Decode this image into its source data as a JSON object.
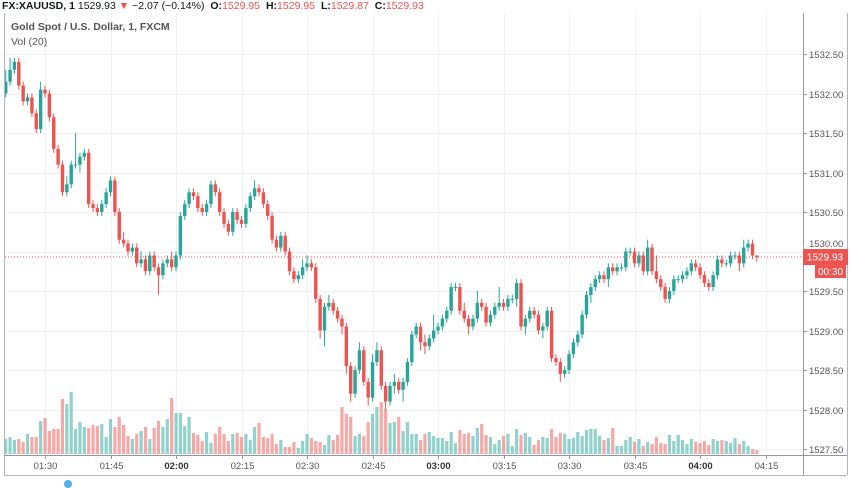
{
  "header": {
    "symbol": "FX:XAUUSD, 1",
    "last": "1529.93",
    "change_arrow": "▼",
    "change": "−2.07 (−0.14%)",
    "o_label": "O:",
    "o": "1529.95",
    "h_label": "H:",
    "h": "1529.95",
    "l_label": "L:",
    "l": "1529.87",
    "c_label": "C:",
    "c": "1529.93"
  },
  "legend": {
    "title": "Gold Spot / U.S. Dollar, 1, FXCM",
    "volume": "Vol (20)"
  },
  "price_label": {
    "value": "1529.93",
    "countdown": "00:30"
  },
  "colors": {
    "up": "#26a69a",
    "down": "#ef5350",
    "grid": "#eef2f6",
    "axis": "#787b86"
  },
  "chart_data": {
    "type": "candlestick",
    "interval_minutes": 1,
    "ylim": [
      1527.4,
      1532.9
    ],
    "grid": true,
    "y_ticks": [
      "1532.50",
      "1532.00",
      "1531.50",
      "1531.00",
      "1530.50",
      "1530.00",
      "1529.50",
      "1529.00",
      "1528.50",
      "1528.00",
      "1527.50"
    ],
    "x_ticks": [
      {
        "label": "01:30",
        "bold": false
      },
      {
        "label": "01:45",
        "bold": false
      },
      {
        "label": "02:00",
        "bold": true
      },
      {
        "label": "02:15",
        "bold": false
      },
      {
        "label": "02:30",
        "bold": false
      },
      {
        "label": "02:45",
        "bold": false
      },
      {
        "label": "03:00",
        "bold": true
      },
      {
        "label": "03:15",
        "bold": false
      },
      {
        "label": "03:30",
        "bold": false
      },
      {
        "label": "03:45",
        "bold": false
      },
      {
        "label": "04:00",
        "bold": true
      },
      {
        "label": "04:15",
        "bold": false
      }
    ],
    "last_price": 1529.93,
    "candles": [
      [
        1532.0,
        1532.3,
        1531.95,
        1532.15
      ],
      [
        1532.15,
        1532.45,
        1532.1,
        1532.3
      ],
      [
        1532.3,
        1532.45,
        1532.25,
        1532.4
      ],
      [
        1532.4,
        1532.45,
        1532.05,
        1532.1
      ],
      [
        1532.1,
        1532.15,
        1531.85,
        1531.9
      ],
      [
        1531.9,
        1532.0,
        1531.85,
        1531.95
      ],
      [
        1531.95,
        1532.0,
        1531.7,
        1531.75
      ],
      [
        1531.75,
        1531.8,
        1531.5,
        1531.55
      ],
      [
        1531.55,
        1532.15,
        1531.5,
        1532.05
      ],
      [
        1532.05,
        1532.1,
        1531.95,
        1532.0
      ],
      [
        1532.0,
        1532.05,
        1531.65,
        1531.7
      ],
      [
        1531.7,
        1531.75,
        1531.25,
        1531.3
      ],
      [
        1531.3,
        1531.35,
        1531.05,
        1531.1
      ],
      [
        1531.1,
        1531.15,
        1530.7,
        1530.75
      ],
      [
        1530.75,
        1530.95,
        1530.7,
        1530.85
      ],
      [
        1530.85,
        1531.15,
        1530.8,
        1531.1
      ],
      [
        1531.1,
        1531.5,
        1531.05,
        1531.1
      ],
      [
        1531.1,
        1531.25,
        1531.0,
        1531.2
      ],
      [
        1531.2,
        1531.3,
        1531.15,
        1531.25
      ],
      [
        1531.25,
        1531.3,
        1530.55,
        1530.6
      ],
      [
        1530.6,
        1530.65,
        1530.5,
        1530.55
      ],
      [
        1530.55,
        1530.6,
        1530.45,
        1530.5
      ],
      [
        1530.5,
        1530.65,
        1530.45,
        1530.6
      ],
      [
        1530.6,
        1530.8,
        1530.55,
        1530.75
      ],
      [
        1530.75,
        1530.95,
        1530.7,
        1530.9
      ],
      [
        1530.9,
        1530.95,
        1530.45,
        1530.5
      ],
      [
        1530.5,
        1530.55,
        1530.1,
        1530.15
      ],
      [
        1530.15,
        1530.25,
        1530.05,
        1530.1
      ],
      [
        1530.1,
        1530.15,
        1529.95,
        1530.0
      ],
      [
        1530.0,
        1530.1,
        1529.95,
        1530.05
      ],
      [
        1530.05,
        1530.1,
        1529.8,
        1529.85
      ],
      [
        1529.85,
        1530.0,
        1529.8,
        1529.9
      ],
      [
        1529.9,
        1529.95,
        1529.7,
        1529.75
      ],
      [
        1529.75,
        1530.0,
        1529.7,
        1529.95
      ],
      [
        1529.95,
        1530.0,
        1529.75,
        1529.8
      ],
      [
        1529.8,
        1529.85,
        1529.45,
        1529.7
      ],
      [
        1529.7,
        1529.9,
        1529.65,
        1529.85
      ],
      [
        1529.85,
        1529.95,
        1529.8,
        1529.9
      ],
      [
        1529.9,
        1530.0,
        1529.75,
        1529.8
      ],
      [
        1529.8,
        1530.0,
        1529.75,
        1529.95
      ],
      [
        1529.95,
        1530.5,
        1529.9,
        1530.45
      ],
      [
        1530.45,
        1530.65,
        1530.4,
        1530.6
      ],
      [
        1530.6,
        1530.8,
        1530.55,
        1530.75
      ],
      [
        1530.75,
        1530.8,
        1530.65,
        1530.7
      ],
      [
        1530.7,
        1530.75,
        1530.5,
        1530.55
      ],
      [
        1530.55,
        1530.6,
        1530.45,
        1530.5
      ],
      [
        1530.5,
        1530.65,
        1530.45,
        1530.6
      ],
      [
        1530.6,
        1530.9,
        1530.55,
        1530.85
      ],
      [
        1530.85,
        1530.9,
        1530.7,
        1530.75
      ],
      [
        1530.75,
        1530.8,
        1530.45,
        1530.5
      ],
      [
        1530.5,
        1530.55,
        1530.3,
        1530.35
      ],
      [
        1530.35,
        1530.4,
        1530.2,
        1530.25
      ],
      [
        1530.25,
        1530.55,
        1530.2,
        1530.5
      ],
      [
        1530.5,
        1530.55,
        1530.35,
        1530.4
      ],
      [
        1530.4,
        1530.45,
        1530.3,
        1530.35
      ],
      [
        1530.35,
        1530.6,
        1530.3,
        1530.55
      ],
      [
        1530.55,
        1530.75,
        1530.5,
        1530.7
      ],
      [
        1530.7,
        1530.9,
        1530.65,
        1530.8
      ],
      [
        1530.8,
        1530.85,
        1530.7,
        1530.75
      ],
      [
        1530.75,
        1530.8,
        1530.55,
        1530.6
      ],
      [
        1530.6,
        1530.65,
        1530.4,
        1530.45
      ],
      [
        1530.45,
        1530.5,
        1530.1,
        1530.15
      ],
      [
        1530.15,
        1530.2,
        1530.0,
        1530.05
      ],
      [
        1530.05,
        1530.25,
        1530.0,
        1530.2
      ],
      [
        1530.2,
        1530.25,
        1529.95,
        1530.0
      ],
      [
        1530.0,
        1530.05,
        1529.7,
        1529.75
      ],
      [
        1529.75,
        1529.8,
        1529.6,
        1529.65
      ],
      [
        1529.65,
        1529.75,
        1529.6,
        1529.7
      ],
      [
        1529.7,
        1529.9,
        1529.65,
        1529.8
      ],
      [
        1529.8,
        1529.95,
        1529.75,
        1529.85
      ],
      [
        1529.85,
        1529.9,
        1529.75,
        1529.8
      ],
      [
        1529.8,
        1529.85,
        1529.35,
        1529.4
      ],
      [
        1529.4,
        1529.45,
        1528.9,
        1529.0
      ],
      [
        1529.0,
        1529.35,
        1528.8,
        1529.3
      ],
      [
        1529.3,
        1529.45,
        1529.25,
        1529.35
      ],
      [
        1529.35,
        1529.4,
        1529.2,
        1529.25
      ],
      [
        1529.25,
        1529.3,
        1529.1,
        1529.15
      ],
      [
        1529.15,
        1529.2,
        1528.95,
        1529.05
      ],
      [
        1529.05,
        1529.1,
        1528.45,
        1528.55
      ],
      [
        1528.55,
        1528.6,
        1528.1,
        1528.2
      ],
      [
        1528.2,
        1528.55,
        1528.15,
        1528.5
      ],
      [
        1528.5,
        1528.85,
        1528.45,
        1528.75
      ],
      [
        1528.75,
        1528.8,
        1528.3,
        1528.35
      ],
      [
        1528.35,
        1528.4,
        1528.05,
        1528.15
      ],
      [
        1528.15,
        1528.7,
        1528.1,
        1528.6
      ],
      [
        1528.6,
        1528.85,
        1528.55,
        1528.75
      ],
      [
        1528.75,
        1528.8,
        1528.25,
        1528.3
      ],
      [
        1528.3,
        1528.35,
        1528.0,
        1528.1
      ],
      [
        1528.1,
        1528.35,
        1528.05,
        1528.3
      ],
      [
        1528.3,
        1528.45,
        1528.2,
        1528.35
      ],
      [
        1528.35,
        1528.4,
        1528.2,
        1528.25
      ],
      [
        1528.25,
        1528.4,
        1528.1,
        1528.35
      ],
      [
        1528.35,
        1528.65,
        1528.3,
        1528.6
      ],
      [
        1528.6,
        1529.0,
        1528.55,
        1528.95
      ],
      [
        1528.95,
        1529.1,
        1528.9,
        1529.05
      ],
      [
        1529.05,
        1529.1,
        1528.75,
        1528.85
      ],
      [
        1528.85,
        1528.95,
        1528.7,
        1528.8
      ],
      [
        1528.8,
        1528.95,
        1528.75,
        1528.9
      ],
      [
        1528.9,
        1529.2,
        1528.85,
        1529.0
      ],
      [
        1529.0,
        1529.1,
        1528.95,
        1529.05
      ],
      [
        1529.05,
        1529.2,
        1529.0,
        1529.15
      ],
      [
        1529.15,
        1529.3,
        1529.1,
        1529.25
      ],
      [
        1529.25,
        1529.6,
        1529.2,
        1529.55
      ],
      [
        1529.55,
        1529.6,
        1529.5,
        1529.55
      ],
      [
        1529.55,
        1529.6,
        1529.2,
        1529.25
      ],
      [
        1529.25,
        1529.35,
        1529.1,
        1529.15
      ],
      [
        1529.15,
        1529.2,
        1528.95,
        1529.05
      ],
      [
        1529.05,
        1529.2,
        1529.0,
        1529.15
      ],
      [
        1529.15,
        1529.5,
        1529.1,
        1529.35
      ],
      [
        1529.35,
        1529.4,
        1529.25,
        1529.3
      ],
      [
        1529.3,
        1529.35,
        1529.05,
        1529.1
      ],
      [
        1529.1,
        1529.25,
        1529.05,
        1529.2
      ],
      [
        1529.2,
        1529.35,
        1529.15,
        1529.3
      ],
      [
        1529.3,
        1529.55,
        1529.25,
        1529.35
      ],
      [
        1529.35,
        1529.4,
        1529.25,
        1529.3
      ],
      [
        1529.3,
        1529.45,
        1529.25,
        1529.4
      ],
      [
        1529.4,
        1529.45,
        1529.35,
        1529.4
      ],
      [
        1529.4,
        1529.65,
        1529.3,
        1529.6
      ],
      [
        1529.6,
        1529.65,
        1529.0,
        1529.05
      ],
      [
        1529.05,
        1529.2,
        1528.95,
        1529.15
      ],
      [
        1529.15,
        1529.3,
        1529.1,
        1529.25
      ],
      [
        1529.25,
        1529.3,
        1529.15,
        1529.2
      ],
      [
        1529.2,
        1529.25,
        1528.95,
        1529.0
      ],
      [
        1529.0,
        1529.1,
        1528.9,
        1529.05
      ],
      [
        1529.05,
        1529.3,
        1529.0,
        1529.25
      ],
      [
        1529.25,
        1529.3,
        1528.6,
        1528.65
      ],
      [
        1528.65,
        1528.7,
        1528.55,
        1528.6
      ],
      [
        1528.6,
        1528.65,
        1528.35,
        1528.45
      ],
      [
        1528.45,
        1528.55,
        1528.4,
        1528.5
      ],
      [
        1528.5,
        1528.75,
        1528.45,
        1528.7
      ],
      [
        1528.7,
        1528.9,
        1528.65,
        1528.85
      ],
      [
        1528.85,
        1529.0,
        1528.8,
        1528.95
      ],
      [
        1528.95,
        1529.25,
        1528.9,
        1529.2
      ],
      [
        1529.2,
        1529.5,
        1529.15,
        1529.45
      ],
      [
        1529.45,
        1529.6,
        1529.35,
        1529.55
      ],
      [
        1529.55,
        1529.7,
        1529.5,
        1529.65
      ],
      [
        1529.65,
        1529.75,
        1529.6,
        1529.7
      ],
      [
        1529.7,
        1529.75,
        1529.6,
        1529.65
      ],
      [
        1529.65,
        1529.85,
        1529.55,
        1529.8
      ],
      [
        1529.8,
        1529.85,
        1529.7,
        1529.75
      ],
      [
        1529.75,
        1529.85,
        1529.7,
        1529.8
      ],
      [
        1529.8,
        1529.85,
        1529.75,
        1529.8
      ],
      [
        1529.8,
        1530.05,
        1529.75,
        1530.0
      ],
      [
        1530.0,
        1530.05,
        1529.95,
        1530.0
      ],
      [
        1530.0,
        1530.05,
        1529.8,
        1529.85
      ],
      [
        1529.85,
        1530.0,
        1529.8,
        1529.95
      ],
      [
        1529.95,
        1530.0,
        1529.7,
        1529.75
      ],
      [
        1529.75,
        1530.15,
        1529.7,
        1530.05
      ],
      [
        1530.05,
        1530.1,
        1529.7,
        1529.75
      ],
      [
        1529.75,
        1529.95,
        1529.6,
        1529.65
      ],
      [
        1529.65,
        1529.7,
        1529.5,
        1529.55
      ],
      [
        1529.55,
        1529.6,
        1529.35,
        1529.4
      ],
      [
        1529.4,
        1529.55,
        1529.35,
        1529.5
      ],
      [
        1529.5,
        1529.7,
        1529.45,
        1529.65
      ],
      [
        1529.65,
        1529.7,
        1529.6,
        1529.65
      ],
      [
        1529.65,
        1529.75,
        1529.6,
        1529.7
      ],
      [
        1529.7,
        1529.8,
        1529.65,
        1529.75
      ],
      [
        1529.75,
        1529.9,
        1529.7,
        1529.85
      ],
      [
        1529.85,
        1529.9,
        1529.75,
        1529.8
      ],
      [
        1529.8,
        1529.85,
        1529.65,
        1529.7
      ],
      [
        1529.7,
        1529.75,
        1529.55,
        1529.6
      ],
      [
        1529.6,
        1529.65,
        1529.5,
        1529.55
      ],
      [
        1529.55,
        1529.75,
        1529.5,
        1529.7
      ],
      [
        1529.7,
        1529.95,
        1529.65,
        1529.9
      ],
      [
        1529.9,
        1529.95,
        1529.8,
        1529.85
      ],
      [
        1529.85,
        1529.9,
        1529.8,
        1529.85
      ],
      [
        1529.85,
        1530.0,
        1529.8,
        1529.95
      ],
      [
        1529.95,
        1530.0,
        1529.9,
        1529.95
      ],
      [
        1529.95,
        1530.0,
        1529.75,
        1529.85
      ],
      [
        1529.85,
        1530.15,
        1529.8,
        1530.05
      ],
      [
        1530.05,
        1530.15,
        1530.0,
        1530.1
      ],
      [
        1530.1,
        1530.15,
        1529.9,
        1529.95
      ],
      [
        1529.95,
        1529.95,
        1529.87,
        1529.93
      ]
    ],
    "volume": [
      15,
      17,
      14,
      15,
      12,
      20,
      17,
      17,
      33,
      36,
      23,
      25,
      25,
      55,
      50,
      62,
      25,
      32,
      27,
      26,
      29,
      28,
      30,
      17,
      35,
      27,
      37,
      29,
      18,
      15,
      20,
      23,
      27,
      15,
      26,
      33,
      27,
      35,
      56,
      41,
      41,
      28,
      37,
      21,
      19,
      13,
      22,
      11,
      20,
      27,
      20,
      13,
      20,
      21,
      17,
      20,
      14,
      27,
      31,
      17,
      16,
      20,
      10,
      14,
      7,
      7,
      12,
      6,
      13,
      20,
      16,
      13,
      12,
      9,
      19,
      14,
      19,
      47,
      40,
      37,
      18,
      20,
      18,
      32,
      40,
      47,
      52,
      45,
      31,
      32,
      37,
      23,
      32,
      20,
      20,
      14,
      20,
      22,
      18,
      16,
      16,
      13,
      22,
      11,
      24,
      20,
      21,
      18,
      26,
      30,
      19,
      17,
      10,
      14,
      18,
      20,
      8,
      25,
      19,
      21,
      17,
      9,
      14,
      17,
      16,
      25,
      17,
      21,
      20,
      15,
      16,
      22,
      18,
      24,
      25,
      25,
      18,
      14,
      16,
      26,
      8,
      8,
      14,
      17,
      12,
      15,
      8,
      12,
      10,
      17,
      11,
      10,
      19,
      13,
      19,
      14,
      10,
      15,
      12,
      11,
      13,
      9,
      15,
      13,
      14,
      13,
      11,
      16,
      10,
      13,
      8,
      5,
      4
    ]
  }
}
